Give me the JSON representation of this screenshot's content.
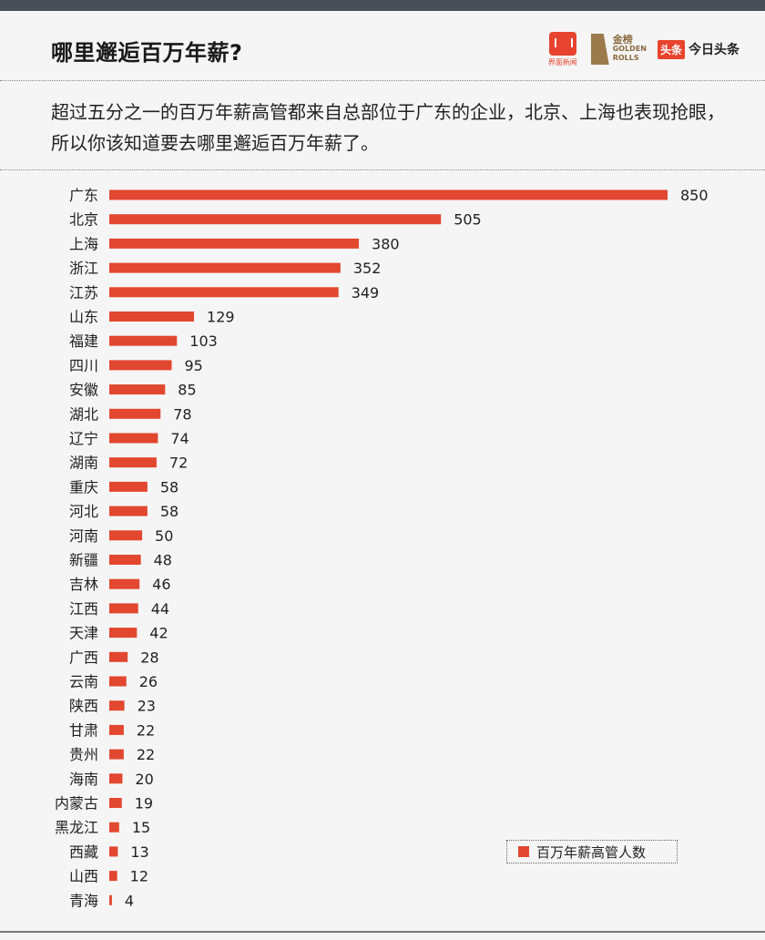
{
  "header": {
    "title": "哪里邂逅百万年薪?",
    "logos": {
      "jiemian": "界面新闻",
      "golden_cn": "金榜",
      "golden_en1": "GOLDEN",
      "golden_en2": "ROLLS",
      "toutiao_badge": "头条",
      "toutiao_name": "今日头条"
    }
  },
  "subtitle": "超过五分之一的百万年薪高管都来自总部位于广东的企业，北京、上海也表现抢眼，所以你该知道要去哪里邂逅百万年薪了。",
  "colors": {
    "bar": "#e2472f",
    "accent": "#e8432e"
  },
  "chart_data": {
    "type": "bar",
    "orientation": "horizontal",
    "title": "哪里邂逅百万年薪?",
    "categories": [
      "广东",
      "北京",
      "上海",
      "浙江",
      "江苏",
      "山东",
      "福建",
      "四川",
      "安徽",
      "湖北",
      "辽宁",
      "湖南",
      "重庆",
      "河北",
      "河南",
      "新疆",
      "吉林",
      "江西",
      "天津",
      "广西",
      "云南",
      "陕西",
      "甘肃",
      "贵州",
      "海南",
      "内蒙古",
      "黑龙江",
      "西藏",
      "山西",
      "青海"
    ],
    "series": [
      {
        "name": "百万年薪高管人数",
        "values": [
          850,
          505,
          380,
          352,
          349,
          129,
          103,
          95,
          85,
          78,
          74,
          72,
          58,
          58,
          50,
          48,
          46,
          44,
          42,
          28,
          26,
          23,
          22,
          22,
          20,
          19,
          15,
          13,
          12,
          4
        ]
      }
    ],
    "xlim": [
      0,
      850
    ],
    "grid": false,
    "legend": "bottom-right"
  }
}
